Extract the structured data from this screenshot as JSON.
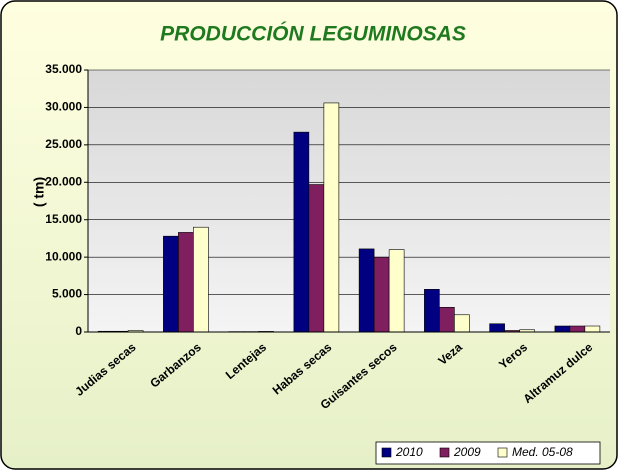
{
  "chart_data": {
    "type": "bar",
    "title": "PRODUCCIÓN LEGUMINOSAS",
    "y_label": "( tm)",
    "categories": [
      "Judias secas",
      "Garbanzos",
      "Lentejas",
      "Habas secas",
      "Guisantes secos",
      "Veza",
      "Yeros",
      "Altramuz dulce"
    ],
    "series": [
      {
        "name": "2010",
        "color": "#000080",
        "values": [
          100,
          12800,
          50,
          26700,
          11100,
          5700,
          1100,
          800
        ]
      },
      {
        "name": "2009",
        "color": "#7f1f5f",
        "values": [
          100,
          13300,
          50,
          19700,
          10000,
          3300,
          200,
          800
        ]
      },
      {
        "name": "Med. 05-08",
        "color": "#ffffcc",
        "values": [
          200,
          14000,
          80,
          30600,
          11000,
          2300,
          300,
          800
        ]
      }
    ],
    "ylim": [
      0,
      35000
    ],
    "yticks": [
      0,
      {
        "value": 5000,
        "label": "5.000"
      },
      {
        "value": 10000,
        "label": "10.000"
      },
      {
        "value": 15000,
        "label": "15.000"
      },
      {
        "value": 20000,
        "label": "20.000"
      },
      {
        "value": 25000,
        "label": "25.000"
      },
      {
        "value": 30000,
        "label": "30.000"
      },
      {
        "value": 35000,
        "label": "35.000"
      }
    ],
    "grid": true,
    "legend": "bottom-right"
  }
}
